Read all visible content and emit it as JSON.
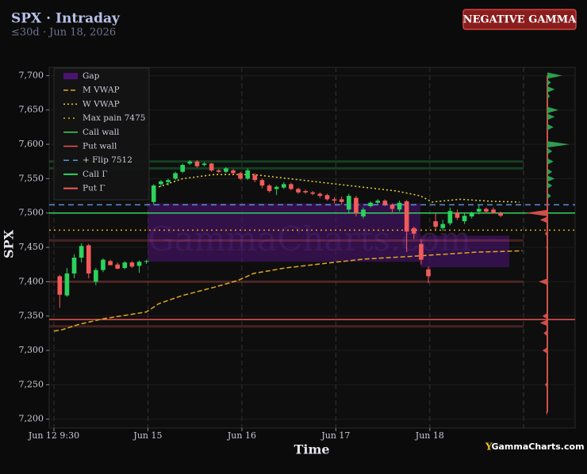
{
  "chart_data": {
    "type": "candlestick",
    "title": "SPX · Intraday",
    "subtitle": "≤30d · Jun 18, 2026",
    "badge": "NEGATIVE GAMMA",
    "xlabel": "Time",
    "ylabel": "SPX",
    "watermark": "GammaCharts.com",
    "logo": "GammaCharts.com",
    "ylim": [
      7187,
      7712
    ],
    "yticks": [
      {
        "value": 7200,
        "label": "7,200"
      },
      {
        "value": 7250,
        "label": "7,250"
      },
      {
        "value": 7300,
        "label": "7,300"
      },
      {
        "value": 7350,
        "label": "7,350"
      },
      {
        "value": 7400,
        "label": "7,400"
      },
      {
        "value": 7450,
        "label": "7,450"
      },
      {
        "value": 7500,
        "label": "7,500"
      },
      {
        "value": 7550,
        "label": "7,550"
      },
      {
        "value": 7600,
        "label": "7,600"
      },
      {
        "value": 7650,
        "label": "7,650"
      },
      {
        "value": 7700,
        "label": "7,700"
      }
    ],
    "xlim": [
      -1.46,
      71.3
    ],
    "xticks": [
      {
        "value": -0.8,
        "label": "Jun 12 9:30"
      },
      {
        "value": 12.2,
        "label": "Jun 15"
      },
      {
        "value": 25.2,
        "label": "Jun 16"
      },
      {
        "value": 38.2,
        "label": "Jun 17"
      },
      {
        "value": 51.2,
        "label": "Jun 18"
      }
    ],
    "grid": true,
    "up_color": "#2bd25e",
    "down_color": "#f25a5a",
    "candles": {
      "x": [
        0,
        1,
        2,
        3,
        4,
        5,
        6,
        7,
        8,
        9,
        10,
        11,
        12,
        13,
        14,
        15,
        16,
        17,
        18,
        19,
        20,
        21,
        22,
        23,
        24,
        25,
        26,
        27,
        28,
        29,
        30,
        31,
        32,
        33,
        34,
        35,
        36,
        37,
        38,
        39,
        40,
        41,
        42,
        43,
        44,
        45,
        46,
        47,
        48,
        49,
        50,
        51,
        52,
        53,
        54,
        55,
        56,
        57,
        58,
        59,
        60,
        61
      ],
      "open": [
        7408,
        7380,
        7412,
        7435,
        7453,
        7400,
        7417,
        7430,
        7425,
        7420,
        7428,
        7423,
        7429,
        7516,
        7542,
        7545,
        7550,
        7560,
        7572,
        7575,
        7570,
        7572,
        7562,
        7560,
        7562,
        7558,
        7550,
        7555,
        7548,
        7540,
        7535,
        7537,
        7542,
        7535,
        7532,
        7530,
        7528,
        7526,
        7520,
        7520,
        7505,
        7522,
        7495,
        7510,
        7515,
        7518,
        7512,
        7505,
        7517,
        7478,
        7455,
        7418,
        7488,
        7478,
        7485,
        7500,
        7488,
        7495,
        7502,
        7506,
        7505,
        7500
      ],
      "high": [
        7410,
        7420,
        7440,
        7456,
        7455,
        7420,
        7434,
        7432,
        7428,
        7430,
        7430,
        7431,
        7432,
        7542,
        7548,
        7550,
        7560,
        7572,
        7577,
        7577,
        7574,
        7573,
        7564,
        7567,
        7564,
        7560,
        7565,
        7558,
        7550,
        7542,
        7540,
        7545,
        7544,
        7537,
        7534,
        7532,
        7530,
        7528,
        7523,
        7524,
        7528,
        7525,
        7508,
        7517,
        7520,
        7520,
        7514,
        7518,
        7519,
        7480,
        7462,
        7422,
        7500,
        7490,
        7508,
        7505,
        7500,
        7502,
        7512,
        7508,
        7508,
        7502
      ],
      "low": [
        7362,
        7378,
        7405,
        7428,
        7405,
        7395,
        7414,
        7424,
        7418,
        7418,
        7420,
        7413,
        7426,
        7512,
        7538,
        7540,
        7548,
        7558,
        7570,
        7566,
        7568,
        7560,
        7558,
        7558,
        7556,
        7548,
        7548,
        7545,
        7536,
        7530,
        7526,
        7535,
        7533,
        7528,
        7528,
        7526,
        7522,
        7518,
        7514,
        7512,
        7500,
        7495,
        7492,
        7508,
        7513,
        7510,
        7500,
        7502,
        7443,
        7462,
        7425,
        7398,
        7476,
        7474,
        7482,
        7490,
        7484,
        7492,
        7498,
        7500,
        7499,
        7494
      ],
      "close": [
        7381,
        7412,
        7435,
        7452,
        7412,
        7417,
        7432,
        7424,
        7419,
        7428,
        7422,
        7429,
        7430,
        7540,
        7546,
        7548,
        7558,
        7570,
        7575,
        7568,
        7572,
        7562,
        7560,
        7565,
        7558,
        7550,
        7562,
        7548,
        7540,
        7532,
        7538,
        7542,
        7535,
        7530,
        7530,
        7528,
        7525,
        7520,
        7518,
        7516,
        7525,
        7500,
        7505,
        7515,
        7518,
        7512,
        7506,
        7515,
        7473,
        7470,
        7432,
        7408,
        7480,
        7484,
        7503,
        7493,
        7496,
        7500,
        7506,
        7502,
        7500,
        7496
      ]
    },
    "gaps": {
      "name": "Gap",
      "color": "#4a1470",
      "x_start": [
        12.2,
        49.9
      ],
      "x_end": [
        49.9,
        62.2
      ],
      "low": [
        7429,
        7421
      ],
      "high": [
        7514,
        7467
      ]
    },
    "series": [
      {
        "name": "M VWAP",
        "color": "#e0a81e",
        "dash": "6 3",
        "x": [
          -0.8,
          0.3,
          2.7,
          6.0,
          12.0,
          13.7,
          17.0,
          21.4,
          24.7,
          26.8,
          31.2,
          37.8,
          42.2,
          48.8,
          53.2,
          57.6,
          64.0
        ],
        "values": [
          7328,
          7330,
          7338,
          7346,
          7356,
          7368,
          7380,
          7392,
          7402,
          7412,
          7420,
          7428,
          7433,
          7437,
          7440,
          7443,
          7445
        ]
      },
      {
        "name": "W VWAP",
        "color": "#e8d23a",
        "dash": "2 3",
        "x": [
          13.7,
          17.0,
          21.4,
          26.8,
          33.4,
          40.0,
          46.6,
          49.9,
          51.5,
          55.4,
          59.8,
          63.6
        ],
        "values": [
          7538,
          7550,
          7556,
          7556,
          7548,
          7540,
          7532,
          7525,
          7516,
          7520,
          7517,
          7516
        ]
      }
    ],
    "levels": [
      {
        "name": "Max pain 7475",
        "value": 7475,
        "color": "#e0a81e",
        "dash": "2 4"
      },
      {
        "name": "Call wall",
        "value": 7500,
        "color": "#35d45a",
        "dash": ""
      },
      {
        "name": "Put wall",
        "value": 7345,
        "color": "#e8554e",
        "dash": ""
      },
      {
        "name": "+ Flip 7512",
        "value": 7512,
        "color": "#5b8fd8",
        "dash": "7 5"
      }
    ],
    "call_gamma": {
      "name": "Call Γ",
      "color": "#2bd25e",
      "values": [
        7575,
        7565
      ]
    },
    "put_gamma": {
      "name": "Put Γ",
      "color": "#f25a5a",
      "values": [
        7460,
        7400,
        7335
      ]
    },
    "profile": {
      "positive_color": "#2e9e50",
      "negative_color": "#d0504a",
      "strikes": [
        7700,
        7690,
        7680,
        7670,
        7650,
        7640,
        7625,
        7600,
        7590,
        7575,
        7560,
        7550,
        7540,
        7525,
        7500,
        7490,
        7470,
        7450,
        7400,
        7350,
        7340,
        7325,
        7300,
        7250,
        7210
      ],
      "values": [
        0.6,
        0.15,
        0.3,
        0.1,
        0.45,
        0.3,
        0.25,
        0.9,
        0.2,
        0.25,
        0.2,
        0.3,
        0.2,
        0.15,
        -0.9,
        -0.3,
        -0.1,
        -0.05,
        -0.35,
        -0.2,
        -0.3,
        -0.15,
        -0.2,
        -0.1,
        -0.05
      ]
    }
  }
}
